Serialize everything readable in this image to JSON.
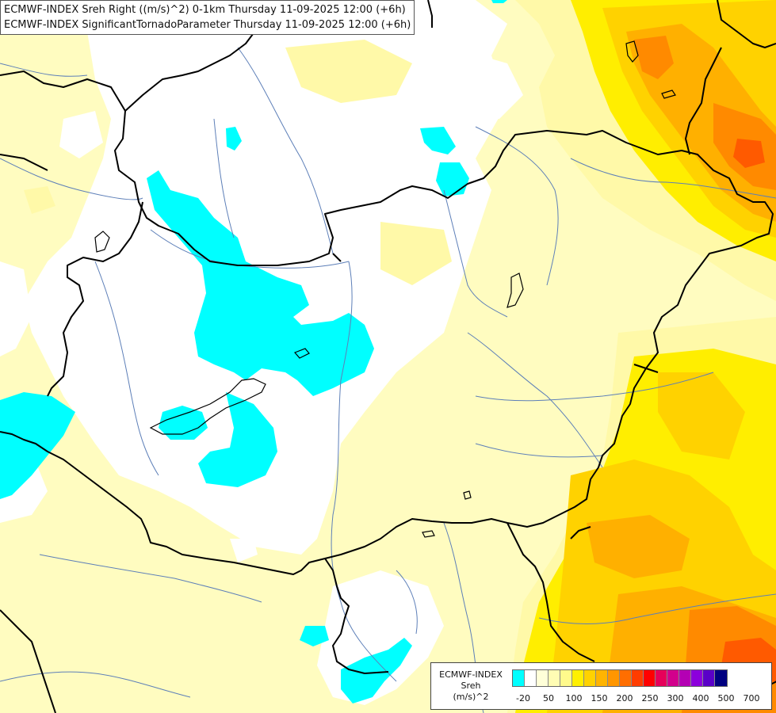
{
  "title": {
    "line1": "ECMWF-INDEX Sreh Right ((m/s)^2) 0-1km Thursday 11-09-2025 12:00 (+6h)",
    "line2": "ECMWF-INDEX SignificantTornadoParameter Thursday 11-09-2025 12:00 (+6h)"
  },
  "legend": {
    "line1": "ECMWF-INDEX",
    "line2": "Sreh",
    "line3": "(m/s)^2",
    "colors": [
      "#00ffff",
      "#ffffff",
      "#ffffd8",
      "#fffdb4",
      "#fffa8c",
      "#fff000",
      "#ffd200",
      "#ffb400",
      "#ff9600",
      "#ff6e00",
      "#ff3c00",
      "#ff0000",
      "#e6005a",
      "#d2008c",
      "#b400b4",
      "#8c00dc",
      "#5a00c8",
      "#000080"
    ],
    "ticks": [
      "-20",
      "50",
      "100",
      "150",
      "200",
      "250",
      "300",
      "400",
      "500",
      "700"
    ]
  },
  "colors": {
    "pale_yellow": "#fffcc0",
    "light_yellow": "#fff9a8",
    "yellow": "#ffee00",
    "gold": "#ffd200",
    "orange": "#ffb000",
    "deep_orange": "#ff8a00",
    "red_orange": "#ff5a00",
    "cyan": "#00ffff",
    "river_blue": "#5d7fb8",
    "border_black": "#000000"
  }
}
